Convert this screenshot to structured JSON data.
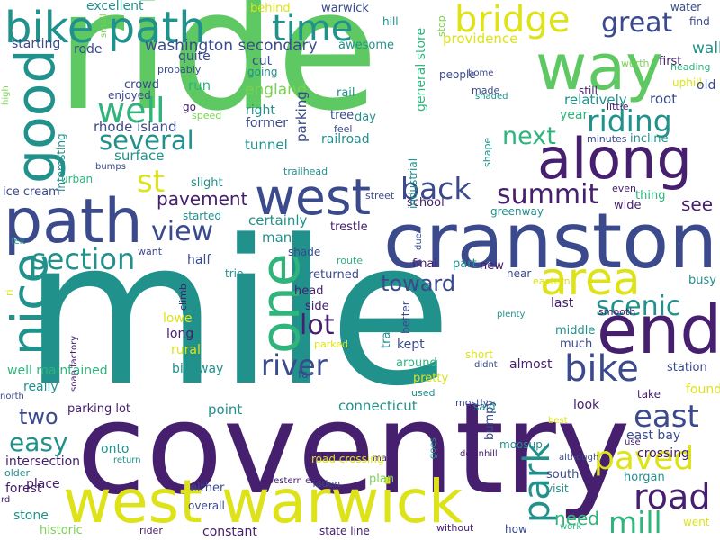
{
  "palette": {
    "purple": "#46206e",
    "indigo": "#3a4a8c",
    "blue": "#3b6a8c",
    "teal": "#21918c",
    "green": "#2fb47c",
    "lightgreen": "#7ad151",
    "brightgreen": "#5ec962",
    "yellow": "#dde318"
  },
  "words": [
    {
      "text": "ride",
      "color": "brightgreen"
    },
    {
      "text": "mile",
      "color": "teal"
    },
    {
      "text": "coventry",
      "color": "purple"
    },
    {
      "text": "cranston",
      "color": "indigo"
    },
    {
      "text": "west warwick",
      "color": "yellow"
    },
    {
      "text": "path",
      "color": "indigo"
    },
    {
      "text": "bike path",
      "color": "teal"
    },
    {
      "text": "way",
      "color": "brightgreen"
    },
    {
      "text": "along",
      "color": "purple"
    },
    {
      "text": "end",
      "color": "purple"
    },
    {
      "text": "west",
      "color": "indigo"
    },
    {
      "text": "area",
      "color": "yellow"
    },
    {
      "text": "good",
      "color": "teal"
    },
    {
      "text": "bridge",
      "color": "yellow"
    },
    {
      "text": "time",
      "color": "teal"
    },
    {
      "text": "one",
      "color": "green"
    },
    {
      "text": "road",
      "color": "purple"
    },
    {
      "text": "bike",
      "color": "indigo"
    },
    {
      "text": "mill",
      "color": "green"
    },
    {
      "text": "park",
      "color": "teal"
    },
    {
      "text": "paved",
      "color": "yellow"
    },
    {
      "text": "east",
      "color": "indigo"
    },
    {
      "text": "riding",
      "color": "teal"
    },
    {
      "text": "great",
      "color": "indigo"
    },
    {
      "text": "well",
      "color": "green"
    },
    {
      "text": "several",
      "color": "teal"
    },
    {
      "text": "back",
      "color": "indigo"
    },
    {
      "text": "summit",
      "color": "purple"
    },
    {
      "text": "nice",
      "color": "teal"
    },
    {
      "text": "section",
      "color": "teal"
    },
    {
      "text": "view",
      "color": "indigo"
    },
    {
      "text": "lot",
      "color": "purple"
    },
    {
      "text": "river",
      "color": "indigo"
    },
    {
      "text": "scenic",
      "color": "teal"
    },
    {
      "text": "easy",
      "color": "teal"
    },
    {
      "text": "st",
      "color": "yellow"
    },
    {
      "text": "next",
      "color": "green"
    },
    {
      "text": "toward",
      "color": "indigo"
    },
    {
      "text": "pavement",
      "color": "purple"
    },
    {
      "text": "two",
      "color": "indigo"
    },
    {
      "text": "need",
      "color": "green"
    },
    {
      "text": "see",
      "color": "purple"
    },
    {
      "text": "washington secondary",
      "color": "indigo"
    },
    {
      "text": "rhode island",
      "color": "indigo"
    },
    {
      "text": "surface",
      "color": "teal"
    },
    {
      "text": "providence",
      "color": "yellow"
    },
    {
      "text": "excellent",
      "color": "teal"
    },
    {
      "text": "rode",
      "color": "indigo"
    },
    {
      "text": "starting",
      "color": "indigo"
    },
    {
      "text": "warwick",
      "color": "indigo"
    },
    {
      "text": "behind",
      "color": "yellow"
    },
    {
      "text": "hill",
      "color": "teal"
    },
    {
      "text": "general store",
      "color": "green"
    },
    {
      "text": "stop",
      "color": "lightgreen"
    },
    {
      "text": "water",
      "color": "indigo"
    },
    {
      "text": "find",
      "color": "indigo"
    },
    {
      "text": "walk",
      "color": "teal"
    },
    {
      "text": "first",
      "color": "purple"
    },
    {
      "text": "heading",
      "color": "green"
    },
    {
      "text": "uphill",
      "color": "yellow"
    },
    {
      "text": "old",
      "color": "indigo"
    },
    {
      "text": "root",
      "color": "indigo"
    },
    {
      "text": "incline",
      "color": "teal"
    },
    {
      "text": "minutes",
      "color": "indigo"
    },
    {
      "text": "england",
      "color": "lightgreen"
    },
    {
      "text": "right",
      "color": "teal"
    },
    {
      "text": "former",
      "color": "indigo"
    },
    {
      "text": "tunnel",
      "color": "teal"
    },
    {
      "text": "parking",
      "color": "indigo"
    },
    {
      "text": "rail",
      "color": "teal"
    },
    {
      "text": "tree",
      "color": "indigo"
    },
    {
      "text": "day",
      "color": "teal"
    },
    {
      "text": "feel",
      "color": "indigo"
    },
    {
      "text": "railroad",
      "color": "teal"
    },
    {
      "text": "run",
      "color": "green"
    },
    {
      "text": "go",
      "color": "purple"
    },
    {
      "text": "quite",
      "color": "indigo"
    },
    {
      "text": "cut",
      "color": "indigo"
    },
    {
      "text": "going",
      "color": "teal"
    },
    {
      "text": "awesome",
      "color": "teal"
    },
    {
      "text": "people",
      "color": "indigo"
    },
    {
      "text": "home",
      "color": "indigo"
    },
    {
      "text": "relatively",
      "color": "teal"
    },
    {
      "text": "year",
      "color": "green"
    },
    {
      "text": "still",
      "color": "purple"
    },
    {
      "text": "little",
      "color": "purple"
    },
    {
      "text": "made",
      "color": "indigo"
    },
    {
      "text": "shaded",
      "color": "teal"
    },
    {
      "text": "worth",
      "color": "lightgreen"
    },
    {
      "text": "enjoyed",
      "color": "indigo"
    },
    {
      "text": "crowd",
      "color": "indigo"
    },
    {
      "text": "probably",
      "color": "indigo"
    },
    {
      "text": "speed",
      "color": "lightgreen"
    },
    {
      "text": "small",
      "color": "lightgreen"
    },
    {
      "text": "high",
      "color": "lightgreen"
    },
    {
      "text": "interesting",
      "color": "teal"
    },
    {
      "text": "bumps",
      "color": "indigo"
    },
    {
      "text": "urban",
      "color": "green"
    },
    {
      "text": "ice cream",
      "color": "indigo"
    },
    {
      "text": "trailhead",
      "color": "teal"
    },
    {
      "text": "slight",
      "color": "teal"
    },
    {
      "text": "started",
      "color": "teal"
    },
    {
      "text": "certainly",
      "color": "teal"
    },
    {
      "text": "street",
      "color": "indigo"
    },
    {
      "text": "school",
      "color": "purple"
    },
    {
      "text": "greenway",
      "color": "teal"
    },
    {
      "text": "industrial",
      "color": "teal"
    },
    {
      "text": "shape",
      "color": "teal"
    },
    {
      "text": "even",
      "color": "purple"
    },
    {
      "text": "wide",
      "color": "purple"
    },
    {
      "text": "thing",
      "color": "green"
    },
    {
      "text": "many",
      "color": "teal"
    },
    {
      "text": "trestle",
      "color": "purple"
    },
    {
      "text": "route",
      "color": "green"
    },
    {
      "text": "shade",
      "color": "indigo"
    },
    {
      "text": "final",
      "color": "purple"
    },
    {
      "text": "part",
      "color": "teal"
    },
    {
      "text": "new",
      "color": "purple"
    },
    {
      "text": "near",
      "color": "indigo"
    },
    {
      "text": "eastern",
      "color": "yellow"
    },
    {
      "text": "busy",
      "color": "teal"
    },
    {
      "text": "half",
      "color": "indigo"
    },
    {
      "text": "trip",
      "color": "teal"
    },
    {
      "text": "want",
      "color": "indigo"
    },
    {
      "text": "felt",
      "color": "teal"
    },
    {
      "text": "returned",
      "color": "indigo"
    },
    {
      "text": "head",
      "color": "purple"
    },
    {
      "text": "side",
      "color": "purple"
    },
    {
      "text": "better",
      "color": "indigo"
    },
    {
      "text": "last",
      "color": "purple"
    },
    {
      "text": "smooth",
      "color": "purple"
    },
    {
      "text": "plenty",
      "color": "teal"
    },
    {
      "text": "middle",
      "color": "teal"
    },
    {
      "text": "much",
      "color": "indigo"
    },
    {
      "text": "climb",
      "color": "purple"
    },
    {
      "text": "lowe",
      "color": "yellow"
    },
    {
      "text": "long",
      "color": "purple"
    },
    {
      "text": "rural",
      "color": "yellow"
    },
    {
      "text": "bikeway",
      "color": "teal"
    },
    {
      "text": "parked",
      "color": "yellow"
    },
    {
      "text": "far",
      "color": "indigo"
    },
    {
      "text": "trails",
      "color": "teal"
    },
    {
      "text": "around",
      "color": "green"
    },
    {
      "text": "kept",
      "color": "indigo"
    },
    {
      "text": "short",
      "color": "yellow"
    },
    {
      "text": "didnt",
      "color": "indigo"
    },
    {
      "text": "almost",
      "color": "purple"
    },
    {
      "text": "pretty",
      "color": "yellow"
    },
    {
      "text": "used",
      "color": "teal"
    },
    {
      "text": "station",
      "color": "indigo"
    },
    {
      "text": "found",
      "color": "yellow"
    },
    {
      "text": "take",
      "color": "purple"
    },
    {
      "text": "look",
      "color": "purple"
    },
    {
      "text": "east bay",
      "color": "indigo"
    },
    {
      "text": "crossing",
      "color": "purple"
    },
    {
      "text": "horgan",
      "color": "teal"
    },
    {
      "text": "use",
      "color": "purple"
    },
    {
      "text": "although",
      "color": "indigo"
    },
    {
      "text": "south",
      "color": "indigo"
    },
    {
      "text": "visit",
      "color": "teal"
    },
    {
      "text": "went",
      "color": "yellow"
    },
    {
      "text": "work",
      "color": "green"
    },
    {
      "text": "how",
      "color": "indigo"
    },
    {
      "text": "without",
      "color": "purple"
    },
    {
      "text": "downhill",
      "color": "purple"
    },
    {
      "text": "plan",
      "color": "lightgreen"
    },
    {
      "text": "max",
      "color": "purple"
    },
    {
      "text": "goes",
      "color": "teal"
    },
    {
      "text": "said",
      "color": "teal"
    },
    {
      "text": "mostly",
      "color": "indigo"
    },
    {
      "text": "moosup",
      "color": "teal"
    },
    {
      "text": "bumpy",
      "color": "indigo"
    },
    {
      "text": "road crossing",
      "color": "yellow"
    },
    {
      "text": "ridden",
      "color": "indigo"
    },
    {
      "text": "constant",
      "color": "purple"
    },
    {
      "text": "state line",
      "color": "purple"
    },
    {
      "text": "overall",
      "color": "indigo"
    },
    {
      "text": "either",
      "color": "indigo"
    },
    {
      "text": "western end",
      "color": "purple"
    },
    {
      "text": "rider",
      "color": "purple"
    },
    {
      "text": "historic",
      "color": "lightgreen"
    },
    {
      "text": "stone",
      "color": "teal"
    },
    {
      "text": "place",
      "color": "purple"
    },
    {
      "text": "forest",
      "color": "purple"
    },
    {
      "text": "rd",
      "color": "purple"
    },
    {
      "text": "older",
      "color": "teal"
    },
    {
      "text": "intersection",
      "color": "purple"
    },
    {
      "text": "return",
      "color": "teal"
    },
    {
      "text": "onto",
      "color": "teal"
    },
    {
      "text": "point",
      "color": "teal"
    },
    {
      "text": "connecticut",
      "color": "teal"
    },
    {
      "text": "parking lot",
      "color": "purple"
    },
    {
      "text": "well maintained",
      "color": "green"
    },
    {
      "text": "north",
      "color": "indigo"
    },
    {
      "text": "really",
      "color": "teal"
    },
    {
      "text": "ri",
      "color": "yellow"
    },
    {
      "text": "soap factory",
      "color": "purple"
    },
    {
      "text": "due",
      "color": "indigo"
    },
    {
      "text": "best",
      "color": "yellow"
    },
    {
      "text": "s",
      "color": "purple"
    }
  ]
}
